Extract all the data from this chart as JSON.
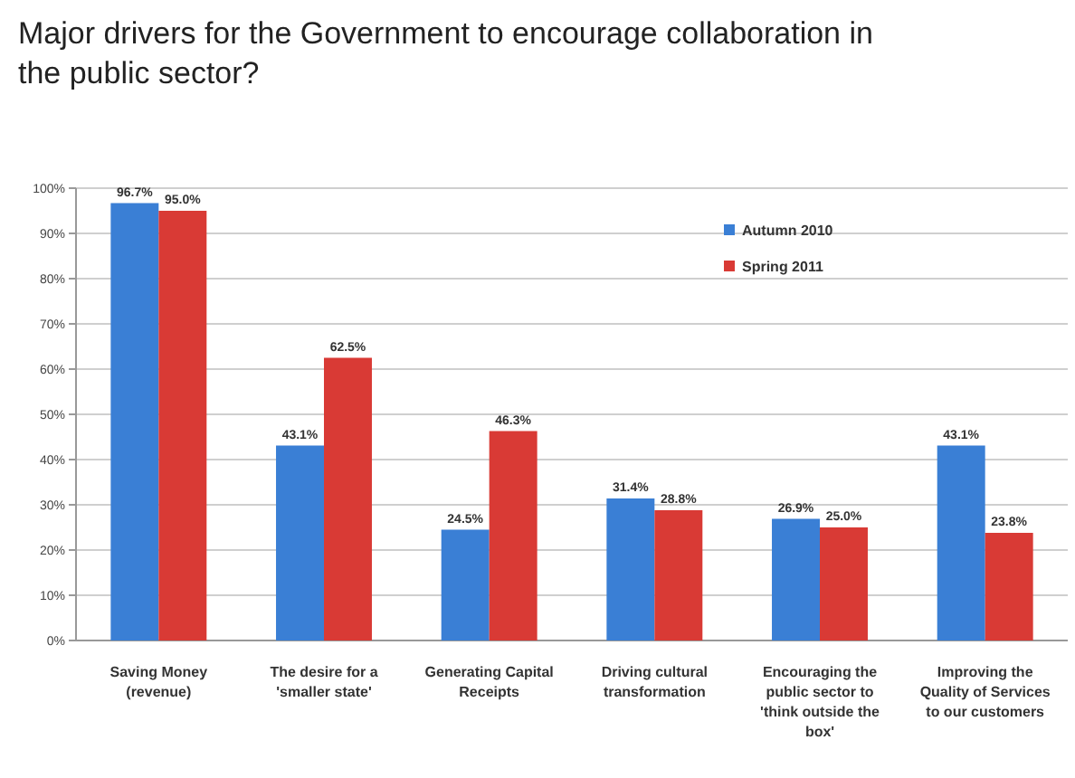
{
  "chart_data": {
    "type": "bar",
    "title": "Major drivers for the Government to encourage collaboration in the public sector?",
    "categories": [
      "Saving Money (revenue)",
      "The desire for a 'smaller state'",
      "Generating Capital Receipts",
      "Driving cultural transformation",
      "Encouraging the public sector to 'think outside the box'",
      "Improving the Quality of Services to our customers"
    ],
    "series": [
      {
        "name": "Autumn 2010",
        "color": "#3a7fd5",
        "values": [
          96.7,
          43.1,
          24.5,
          31.4,
          26.9,
          43.1
        ],
        "value_labels": [
          "96.7%",
          "43.1%",
          "24.5%",
          "31.4%",
          "26.9%",
          "43.1%"
        ]
      },
      {
        "name": "Spring 2011",
        "color": "#d93a35",
        "values": [
          95.0,
          62.5,
          46.3,
          28.8,
          25.0,
          23.8
        ],
        "value_labels": [
          "95.0%",
          "62.5%",
          "46.3%",
          "28.8%",
          "25.0%",
          "23.8%"
        ]
      }
    ],
    "ylim": [
      0,
      100
    ],
    "yticks": [
      {
        "value": 0,
        "label": "0%"
      },
      {
        "value": 10,
        "label": "10%"
      },
      {
        "value": 20,
        "label": "20%"
      },
      {
        "value": 30,
        "label": "30%"
      },
      {
        "value": 40,
        "label": "40%"
      },
      {
        "value": 50,
        "label": "50%"
      },
      {
        "value": 60,
        "label": "60%"
      },
      {
        "value": 70,
        "label": "70%"
      },
      {
        "value": 80,
        "label": "80%"
      },
      {
        "value": 90,
        "label": "90%"
      },
      {
        "value": 100,
        "label": "100%"
      }
    ],
    "grid": "y",
    "legend": "top right"
  }
}
